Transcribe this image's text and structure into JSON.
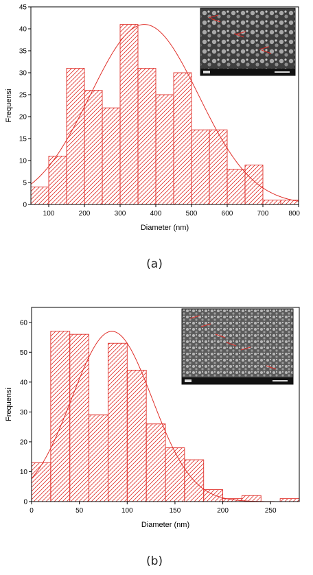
{
  "chart_data": [
    {
      "panel_label": "(a)",
      "type": "bar",
      "kind": "histogram",
      "xlabel": "Diameter (nm)",
      "ylabel": "Frequensi",
      "xlim": [
        50,
        800
      ],
      "ylim": [
        0,
        45
      ],
      "xticks": [
        "100",
        "200",
        "300",
        "400",
        "500",
        "600",
        "700",
        "800"
      ],
      "yticks": [
        "0",
        "5",
        "10",
        "15",
        "20",
        "25",
        "30",
        "35",
        "40",
        "45"
      ],
      "bins": [
        {
          "start": 50,
          "end": 100,
          "value": 4
        },
        {
          "start": 100,
          "end": 150,
          "value": 11
        },
        {
          "start": 150,
          "end": 200,
          "value": 31
        },
        {
          "start": 200,
          "end": 250,
          "value": 26
        },
        {
          "start": 250,
          "end": 300,
          "value": 22
        },
        {
          "start": 300,
          "end": 350,
          "value": 41
        },
        {
          "start": 350,
          "end": 400,
          "value": 31
        },
        {
          "start": 400,
          "end": 450,
          "value": 25
        },
        {
          "start": 450,
          "end": 500,
          "value": 30
        },
        {
          "start": 500,
          "end": 550,
          "value": 17
        },
        {
          "start": 550,
          "end": 600,
          "value": 17
        },
        {
          "start": 600,
          "end": 650,
          "value": 8
        },
        {
          "start": 650,
          "end": 700,
          "value": 9
        },
        {
          "start": 700,
          "end": 750,
          "value": 1
        },
        {
          "start": 750,
          "end": 800,
          "value": 1
        }
      ],
      "fit": {
        "type": "gaussian",
        "mean": 368,
        "sd": 152,
        "peak": 41
      },
      "inset": "SEM micrograph",
      "bar_color": "#e0302a"
    },
    {
      "panel_label": "(b)",
      "type": "bar",
      "kind": "histogram",
      "xlabel": "Diameter (nm)",
      "ylabel": "Frequensi",
      "xlim": [
        0,
        280
      ],
      "ylim": [
        0,
        65
      ],
      "xticks": [
        "0",
        "50",
        "100",
        "150",
        "200",
        "250"
      ],
      "yticks": [
        "0",
        "10",
        "20",
        "30",
        "40",
        "50",
        "60"
      ],
      "bins": [
        {
          "start": 0,
          "end": 20,
          "value": 13
        },
        {
          "start": 20,
          "end": 40,
          "value": 57
        },
        {
          "start": 40,
          "end": 60,
          "value": 56
        },
        {
          "start": 60,
          "end": 80,
          "value": 29
        },
        {
          "start": 80,
          "end": 100,
          "value": 53
        },
        {
          "start": 100,
          "end": 120,
          "value": 44
        },
        {
          "start": 120,
          "end": 140,
          "value": 26
        },
        {
          "start": 140,
          "end": 160,
          "value": 18
        },
        {
          "start": 160,
          "end": 180,
          "value": 14
        },
        {
          "start": 180,
          "end": 200,
          "value": 4
        },
        {
          "start": 200,
          "end": 220,
          "value": 1
        },
        {
          "start": 220,
          "end": 240,
          "value": 2
        },
        {
          "start": 240,
          "end": 260,
          "value": 0
        },
        {
          "start": 260,
          "end": 280,
          "value": 1
        }
      ],
      "fit": {
        "type": "gaussian",
        "mean": 84,
        "sd": 42,
        "peak": 57
      },
      "inset": "SEM micrograph",
      "bar_color": "#e0302a"
    }
  ]
}
